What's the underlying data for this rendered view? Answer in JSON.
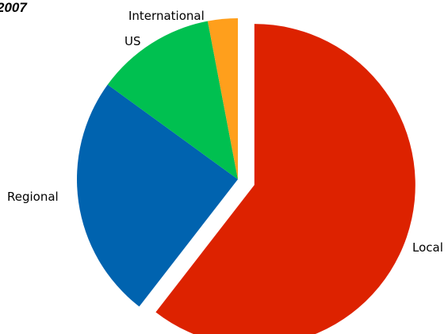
{
  "chart_data": {
    "type": "pie",
    "title": "2007",
    "exploded": "Local",
    "slices": [
      {
        "label": "Local",
        "value": 60.5,
        "color": "#dd2200"
      },
      {
        "label": "Regional",
        "value": 24.5,
        "color": "#0063af"
      },
      {
        "label": "US",
        "value": 12.0,
        "color": "#00c050"
      },
      {
        "label": "International",
        "value": 3.0,
        "color": "#ff9f1c"
      }
    ]
  }
}
